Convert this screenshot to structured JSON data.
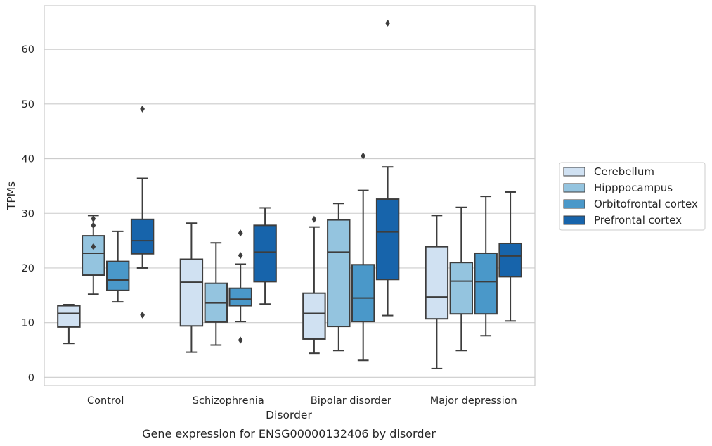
{
  "chart_data": {
    "type": "box",
    "title": "",
    "caption": "Gene expression for ENSG00000132406 by disorder",
    "xlabel": "Disorder",
    "ylabel": "TPMs",
    "ylim": [
      -1.5,
      68
    ],
    "yticks": [
      0,
      10,
      20,
      30,
      40,
      50,
      60
    ],
    "grid": true,
    "legend_position": "right",
    "categories": [
      "Control",
      "Schizophrenia",
      "Bipolar disorder",
      "Major depression"
    ],
    "series": [
      {
        "name": "Cerebellum",
        "color": "#d0e1f2",
        "boxes": [
          {
            "whislo": 6.2,
            "q1": 9.2,
            "med": 11.7,
            "q3": 13.1,
            "whishi": 13.3,
            "fliers": []
          },
          {
            "whislo": 4.6,
            "q1": 9.4,
            "med": 17.4,
            "q3": 21.6,
            "whishi": 28.2,
            "fliers": []
          },
          {
            "whislo": 4.4,
            "q1": 7.0,
            "med": 11.7,
            "q3": 15.4,
            "whishi": 27.5,
            "fliers": [
              28.9
            ]
          },
          {
            "whislo": 1.6,
            "q1": 10.7,
            "med": 14.7,
            "q3": 23.9,
            "whishi": 29.6,
            "fliers": []
          }
        ]
      },
      {
        "name": "Hipppocampus",
        "color": "#94c4df",
        "boxes": [
          {
            "whislo": 15.2,
            "q1": 18.7,
            "med": 22.7,
            "q3": 25.9,
            "whishi": 29.6,
            "fliers": [
              23.9,
              27.8,
              29.0
            ]
          },
          {
            "whislo": 5.9,
            "q1": 10.1,
            "med": 13.6,
            "q3": 17.2,
            "whishi": 24.6,
            "fliers": []
          },
          {
            "whislo": 4.9,
            "q1": 9.3,
            "med": 22.9,
            "q3": 28.8,
            "whishi": 31.8,
            "fliers": []
          },
          {
            "whislo": 4.9,
            "q1": 11.6,
            "med": 17.6,
            "q3": 21.0,
            "whishi": 31.1,
            "fliers": []
          }
        ]
      },
      {
        "name": "Orbitofrontal cortex",
        "color": "#4a98c9",
        "boxes": [
          {
            "whislo": 13.8,
            "q1": 15.9,
            "med": 17.8,
            "q3": 21.2,
            "whishi": 26.7,
            "fliers": []
          },
          {
            "whislo": 10.2,
            "q1": 13.1,
            "med": 14.3,
            "q3": 16.3,
            "whishi": 20.7,
            "fliers": [
              6.8,
              22.3,
              26.4
            ]
          },
          {
            "whislo": 3.1,
            "q1": 10.2,
            "med": 14.5,
            "q3": 20.6,
            "whishi": 34.2,
            "fliers": [
              40.5
            ]
          },
          {
            "whislo": 7.6,
            "q1": 11.6,
            "med": 17.5,
            "q3": 22.7,
            "whishi": 33.1,
            "fliers": []
          }
        ]
      },
      {
        "name": "Prefrontal cortex",
        "color": "#1764ab",
        "boxes": [
          {
            "whislo": 20.0,
            "q1": 22.6,
            "med": 25.0,
            "q3": 28.9,
            "whishi": 36.4,
            "fliers": [
              11.4,
              49.1
            ]
          },
          {
            "whislo": 13.4,
            "q1": 17.5,
            "med": 22.9,
            "q3": 27.8,
            "whishi": 31.0,
            "fliers": []
          },
          {
            "whislo": 11.3,
            "q1": 17.9,
            "med": 26.6,
            "q3": 32.6,
            "whishi": 38.5,
            "fliers": [
              64.8
            ]
          },
          {
            "whislo": 10.3,
            "q1": 18.4,
            "med": 22.2,
            "q3": 24.5,
            "whishi": 33.9,
            "fliers": []
          }
        ]
      }
    ]
  }
}
